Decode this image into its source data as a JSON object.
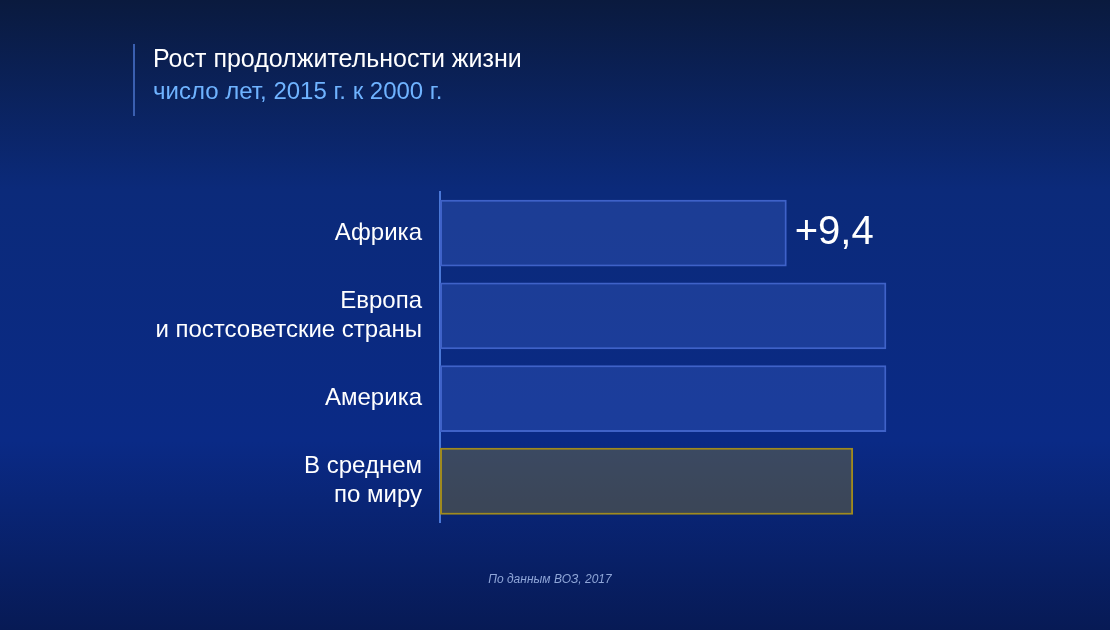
{
  "chart_data": {
    "type": "bar",
    "orientation": "horizontal",
    "title": "Рост продолжительности жизни",
    "subtitle": "число лет, 2015 г. к 2000 г.",
    "categories": [
      "Африка",
      "Европа\nи постсоветские страны",
      "Америка",
      "В среднем\nпо миру"
    ],
    "values": [
      9.4,
      12.1,
      12.1,
      11.2
    ],
    "value_labels": [
      "+9,4",
      null,
      null,
      null
    ],
    "colors": [
      "#3f62c8",
      "#3f62c8",
      "#3f62c8",
      "#a08a1e"
    ],
    "xlim": [
      0,
      12.2
    ],
    "legend": false,
    "annotations": [
      "По данным ВОЗ, 2017"
    ]
  }
}
